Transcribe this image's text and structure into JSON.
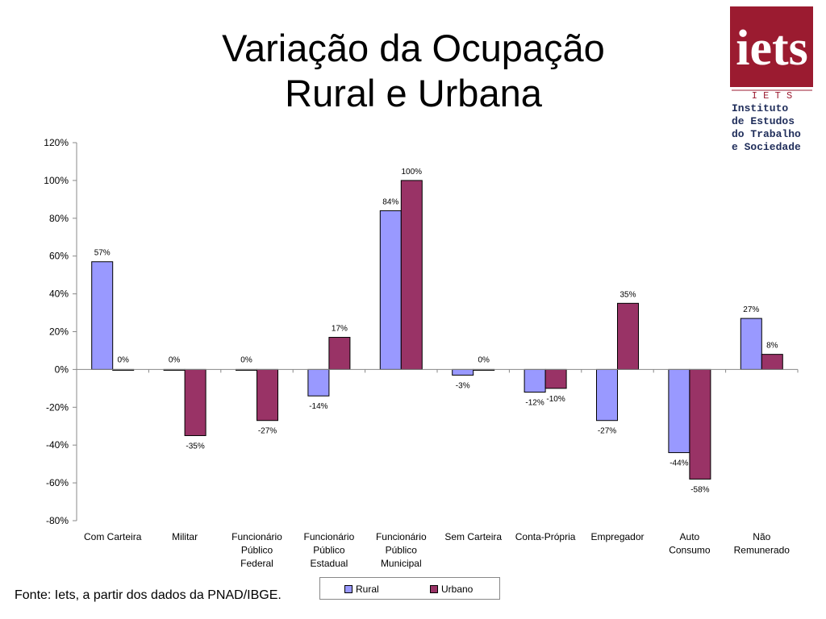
{
  "title": [
    "Variação da Ocupação",
    "Rural e Urbana"
  ],
  "source": "Fonte: Iets, a partir dos dados da PNAD/IBGE.",
  "logo": {
    "mark": "iets",
    "abbr": "I E T S",
    "lines": [
      "Instituto",
      "de Estudos",
      "do Trabalho",
      "e Sociedade"
    ],
    "color": "#9b1b30"
  },
  "chart_data": {
    "type": "bar",
    "categories": [
      [
        "Com Carteira"
      ],
      [
        "Militar"
      ],
      [
        "Funcionário",
        "Público",
        "Federal"
      ],
      [
        "Funcionário",
        "Público",
        "Estadual"
      ],
      [
        "Funcionário",
        "Público",
        "Municipal"
      ],
      [
        "Sem Carteira"
      ],
      [
        "Conta-Própria"
      ],
      [
        "Empregador"
      ],
      [
        "Auto",
        "Consumo"
      ],
      [
        "Não",
        "Remunerado"
      ]
    ],
    "series": [
      {
        "name": "Rural",
        "color": "#9999ff",
        "values": [
          57,
          0,
          0,
          -14,
          84,
          -3,
          -12,
          -27,
          -44,
          27
        ],
        "labels": [
          "57%",
          "0%",
          "0%",
          "-14%",
          "84%",
          "-3%",
          "-12%",
          "-27%",
          "-44%",
          "27%"
        ]
      },
      {
        "name": "Urbano",
        "color": "#993366",
        "values": [
          0,
          -35,
          -27,
          17,
          100,
          0,
          -10,
          35,
          -58,
          8
        ],
        "labels": [
          "0%",
          "-35%",
          "-27%",
          "17%",
          "100%",
          "0%",
          "-10%",
          "35%",
          "-58%",
          "8%"
        ]
      }
    ],
    "y_ticks": [
      120,
      100,
      80,
      60,
      40,
      20,
      0,
      -20,
      -40,
      -60,
      -80
    ],
    "y_tick_labels": [
      "120%",
      "100%",
      "80%",
      "60%",
      "40%",
      "20%",
      "0%",
      "-20%",
      "-40%",
      "-60%",
      "-80%"
    ],
    "ylim": [
      -80,
      120
    ],
    "grid": false,
    "legend_position": "bottom"
  }
}
